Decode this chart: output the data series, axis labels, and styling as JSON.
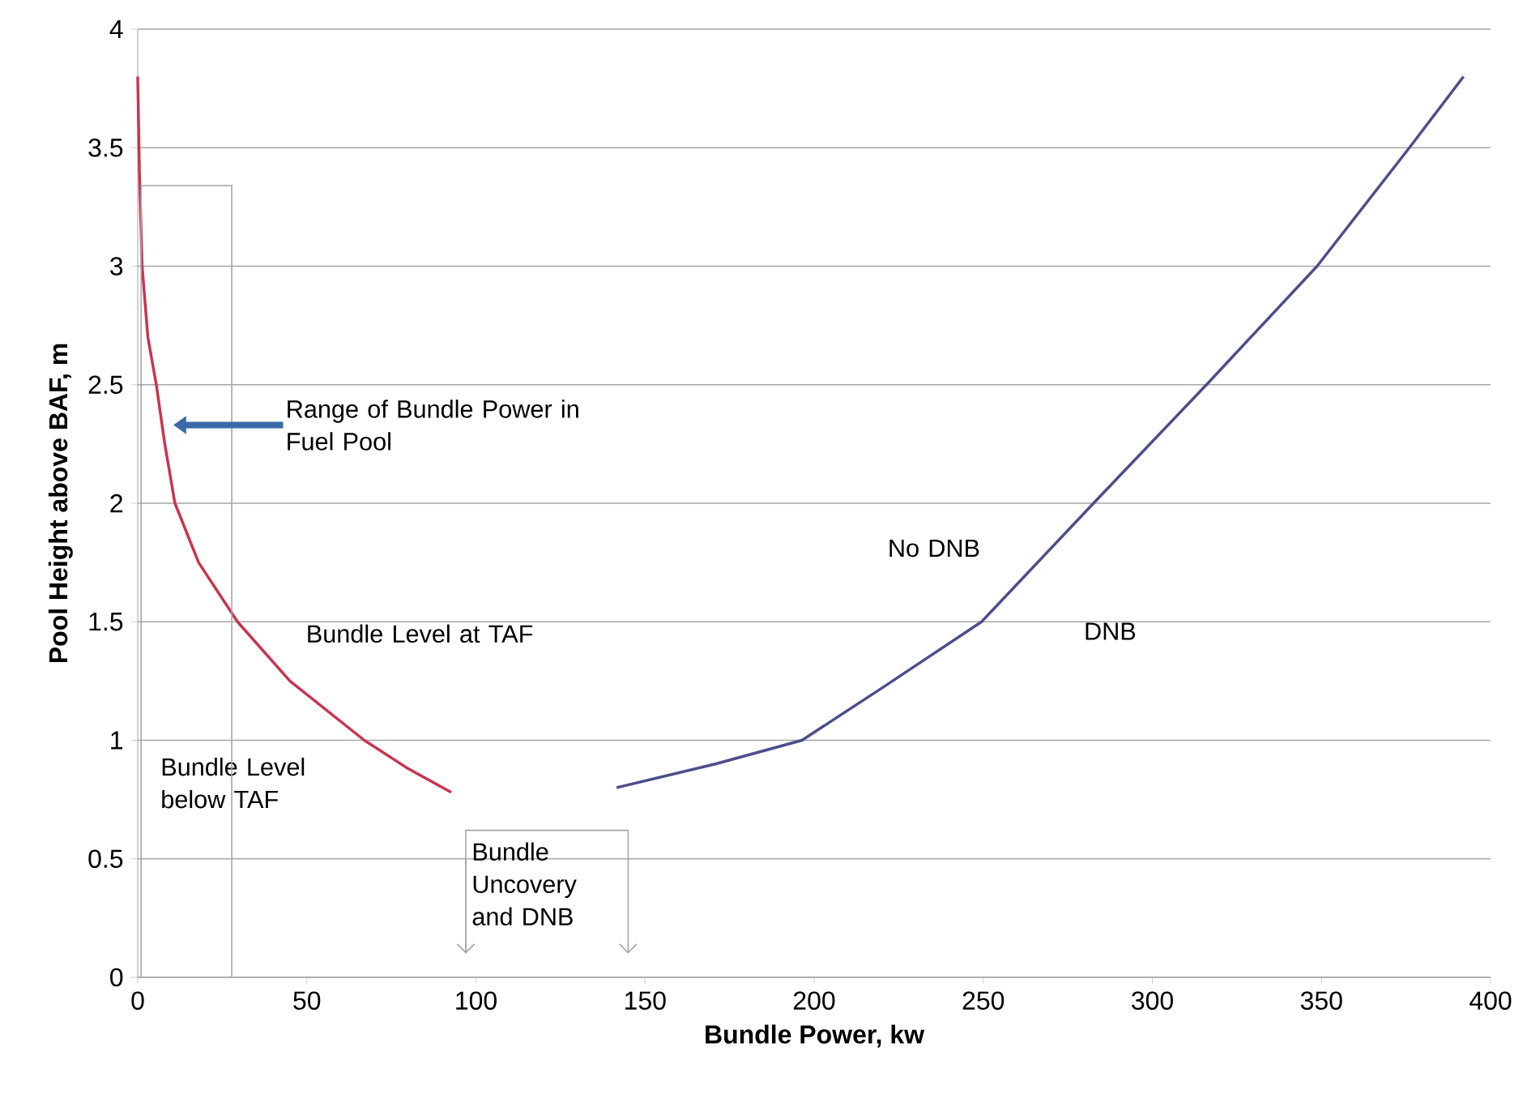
{
  "chart_data": {
    "type": "line",
    "xlabel": "Bundle Power, kw",
    "ylabel": "Pool Height above BAF, m",
    "series": [
      {
        "color": "#c8344f",
        "x": [
          0,
          0.5,
          1.3,
          3,
          5.5,
          8,
          11,
          18,
          29.5,
          45,
          67,
          80,
          92.7
        ],
        "values": [
          3.8,
          3.4,
          3.0,
          2.7,
          2.5,
          2.25,
          2.0,
          1.75,
          1.5,
          1.25,
          1.0,
          0.88,
          0.78
        ]
      },
      {
        "color": "#4a4f8a",
        "x": [
          141.6,
          170.8,
          196.4,
          220,
          249.5,
          282.6,
          316,
          348.7,
          376,
          392
        ],
        "values": [
          0.8,
          0.9,
          1.0,
          1.22,
          1.5,
          2.0,
          2.5,
          3.0,
          3.5,
          3.8
        ]
      }
    ],
    "annotations": [
      "Range of Bundle Power in Fuel Pool",
      "Bundle Level at TAF",
      "Bundle Level below TAF",
      "Bundle Uncovery and DNB",
      "No DNB",
      "DNB"
    ],
    "xlim": [
      0,
      400
    ],
    "ylim": [
      0,
      4
    ],
    "xticks": [
      0,
      50,
      100,
      150,
      200,
      250,
      300,
      350,
      400
    ],
    "yticks": [
      0,
      0.5,
      1,
      1.5,
      2,
      2.5,
      3,
      3.5,
      4
    ],
    "grid": "y",
    "marker": "none",
    "line_style": "solid"
  }
}
